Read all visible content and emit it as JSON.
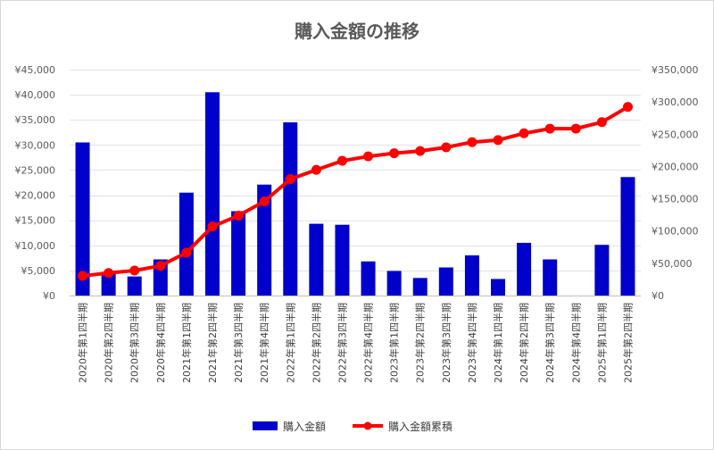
{
  "chart_data": {
    "type": "bar+line",
    "title": "購入金額の推移",
    "categories": [
      "2020年第1四半期",
      "2020年第2四半期",
      "2020年第3四半期",
      "2020年第4四半期",
      "2021年第1四半期",
      "2021年第2四半期",
      "2021年第3四半期",
      "2021年第4四半期",
      "2022年第1四半期",
      "2022年第2四半期",
      "2022年第3四半期",
      "2022年第4四半期",
      "2023年第1四半期",
      "2023年第2四半期",
      "2023年第3四半期",
      "2023年第4四半期",
      "2024年第1四半期",
      "2024年第2四半期",
      "2024年第3四半期",
      "2024年第4四半期",
      "2025年第1四半期",
      "2025年第2四半期"
    ],
    "series": [
      {
        "name": "購入金額",
        "type": "bar",
        "axis": "left",
        "color": "#0000CC",
        "values": [
          30500,
          4500,
          3800,
          7200,
          20500,
          40500,
          16800,
          22100,
          34500,
          14300,
          14100,
          6800,
          4900,
          3500,
          5600,
          8000,
          3300,
          10500,
          7200,
          0,
          10100,
          23600
        ]
      },
      {
        "name": "購入金額累積",
        "type": "line",
        "axis": "right",
        "color": "#FF0000",
        "values": [
          30500,
          35000,
          38800,
          46000,
          66500,
          107000,
          123800,
          145900,
          180400,
          194700,
          208800,
          215600,
          220500,
          224000,
          229600,
          237600,
          240900,
          251400,
          258600,
          258600,
          268700,
          292300
        ]
      }
    ],
    "y_left": {
      "min": 0,
      "max": 45000,
      "step": 5000,
      "tick_labels": [
        "¥0",
        "¥5,000",
        "¥10,000",
        "¥15,000",
        "¥20,000",
        "¥25,000",
        "¥30,000",
        "¥35,000",
        "¥40,000",
        "¥45,000"
      ]
    },
    "y_right": {
      "min": 0,
      "max": 350000,
      "step": 50000,
      "tick_labels": [
        "¥0",
        "¥50,000",
        "¥100,000",
        "¥150,000",
        "¥200,000",
        "¥250,000",
        "¥300,000",
        "¥350,000"
      ]
    },
    "grid": true,
    "legend_position": "bottom"
  }
}
